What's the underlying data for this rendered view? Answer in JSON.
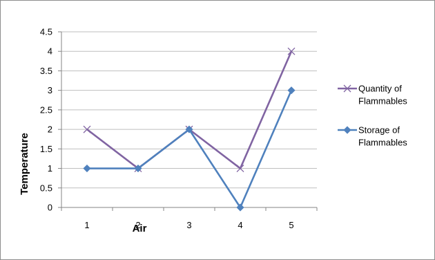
{
  "chart_data": {
    "type": "line",
    "title": "",
    "xlabel": "Air",
    "ylabel": "Temperature",
    "categories": [
      "1",
      "2",
      "3",
      "4",
      "5"
    ],
    "ylim": [
      0,
      4.5
    ],
    "yticks": [
      "0",
      "0.5",
      "1",
      "1.5",
      "2",
      "2.5",
      "3",
      "3.5",
      "4",
      "4.5"
    ],
    "grid": true,
    "legend_position": "right",
    "series": [
      {
        "name_lines": [
          "Quantity of",
          "Flammables"
        ],
        "values": [
          2,
          1,
          2,
          1,
          4
        ],
        "color": "#8064a2",
        "marker": "x"
      },
      {
        "name_lines": [
          "Storage of",
          "Flammables"
        ],
        "values": [
          1,
          1,
          2,
          0,
          3
        ],
        "color": "#4f81bd",
        "marker": "diamond"
      }
    ]
  }
}
